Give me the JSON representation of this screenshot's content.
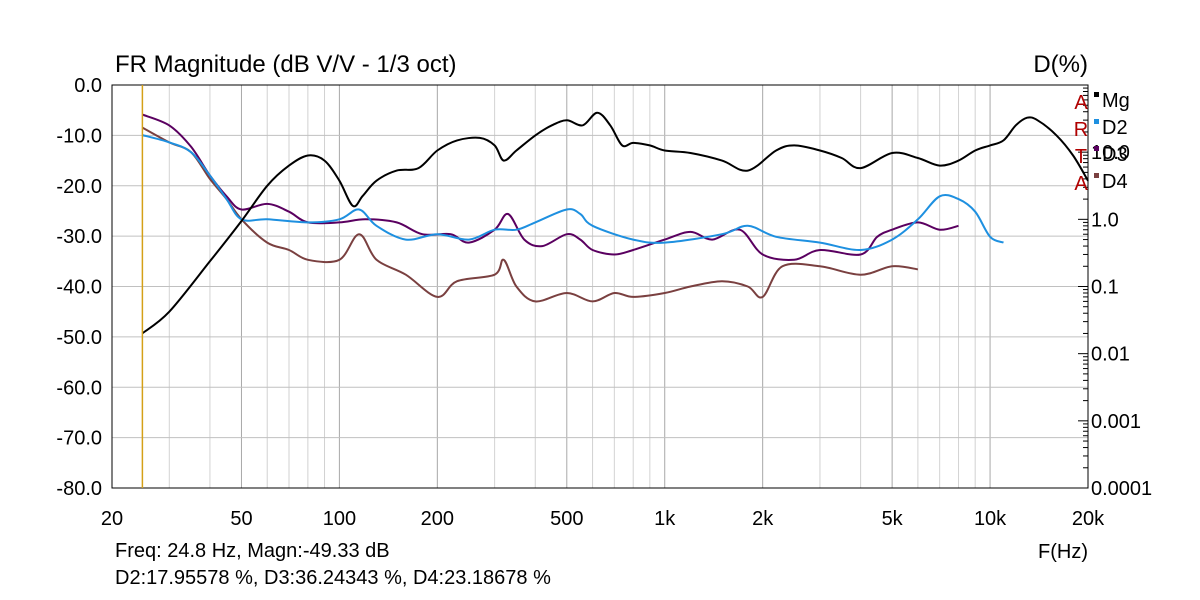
{
  "chart_data": {
    "type": "line",
    "title": "FR Magnitude (dB V/V - 1/3 oct)",
    "right_axis_title": "D(%)",
    "xlabel": "F(Hz)",
    "x_scale": "log",
    "xlim": [
      20,
      20000
    ],
    "ylim": [
      -80,
      0
    ],
    "y2_scale": "log",
    "y2lim": [
      0.0001,
      100
    ],
    "grid": true,
    "x_ticks": [
      20,
      50,
      100,
      200,
      500,
      1000,
      2000,
      5000,
      10000,
      20000
    ],
    "x_tick_labels": [
      "20",
      "50",
      "100",
      "200",
      "500",
      "1k",
      "2k",
      "5k",
      "10k",
      "20k"
    ],
    "y_ticks": [
      0,
      -10,
      -20,
      -30,
      -40,
      -50,
      -60,
      -70,
      -80
    ],
    "y_tick_labels": [
      "0.0",
      "-10.0",
      "-20.0",
      "-30.0",
      "-40.0",
      "-50.0",
      "-60.0",
      "-70.0",
      "-80.0"
    ],
    "y2_ticks": [
      10,
      1,
      0.1,
      0.01,
      0.001,
      0.0001
    ],
    "y2_tick_labels": [
      "10.0",
      "1.0",
      "0.1",
      "0.01",
      "0.001",
      "0.0001"
    ],
    "cursor_x": 24.8,
    "legend_placement": "top-right",
    "series": [
      {
        "name": "Mg",
        "tag": "A",
        "color": "#000000",
        "axis": "left",
        "points": [
          [
            24.8,
            -49.3
          ],
          [
            30,
            -45
          ],
          [
            40,
            -35
          ],
          [
            50,
            -27
          ],
          [
            60,
            -20
          ],
          [
            70,
            -16
          ],
          [
            80,
            -14
          ],
          [
            90,
            -15
          ],
          [
            100,
            -19
          ],
          [
            110,
            -24
          ],
          [
            118,
            -22
          ],
          [
            130,
            -19
          ],
          [
            150,
            -17
          ],
          [
            175,
            -16.5
          ],
          [
            200,
            -13
          ],
          [
            230,
            -11
          ],
          [
            270,
            -10.5
          ],
          [
            300,
            -12
          ],
          [
            320,
            -15
          ],
          [
            350,
            -13
          ],
          [
            400,
            -10
          ],
          [
            450,
            -8
          ],
          [
            500,
            -7
          ],
          [
            560,
            -8
          ],
          [
            620,
            -5.5
          ],
          [
            680,
            -8
          ],
          [
            740,
            -12
          ],
          [
            800,
            -11.5
          ],
          [
            900,
            -12
          ],
          [
            1000,
            -13
          ],
          [
            1200,
            -13.5
          ],
          [
            1500,
            -15
          ],
          [
            1800,
            -17
          ],
          [
            2200,
            -13
          ],
          [
            2500,
            -12
          ],
          [
            3000,
            -13
          ],
          [
            3500,
            -14.5
          ],
          [
            4000,
            -16.5
          ],
          [
            5000,
            -13.5
          ],
          [
            6000,
            -14.5
          ],
          [
            7000,
            -16
          ],
          [
            8000,
            -15
          ],
          [
            9000,
            -13
          ],
          [
            10000,
            -12
          ],
          [
            11000,
            -11
          ],
          [
            12000,
            -8
          ],
          [
            13000,
            -6.5
          ],
          [
            14000,
            -7
          ],
          [
            16000,
            -10
          ],
          [
            18000,
            -14
          ],
          [
            20000,
            -19
          ]
        ]
      },
      {
        "name": "D2",
        "tag": "R",
        "color": "#1e90e0",
        "axis": "right",
        "points": [
          [
            24.8,
            17.96
          ],
          [
            30,
            14
          ],
          [
            35,
            10
          ],
          [
            40,
            4.5
          ],
          [
            45,
            2
          ],
          [
            50,
            1.0
          ],
          [
            60,
            1.0
          ],
          [
            80,
            0.9
          ],
          [
            100,
            1.0
          ],
          [
            115,
            1.4
          ],
          [
            130,
            0.8
          ],
          [
            160,
            0.5
          ],
          [
            200,
            0.6
          ],
          [
            250,
            0.5
          ],
          [
            300,
            0.7
          ],
          [
            350,
            0.7
          ],
          [
            400,
            0.9
          ],
          [
            500,
            1.4
          ],
          [
            550,
            1.2
          ],
          [
            600,
            0.8
          ],
          [
            800,
            0.5
          ],
          [
            1000,
            0.45
          ],
          [
            1500,
            0.6
          ],
          [
            1800,
            0.8
          ],
          [
            2200,
            0.55
          ],
          [
            3000,
            0.45
          ],
          [
            4000,
            0.35
          ],
          [
            5000,
            0.5
          ],
          [
            6000,
            1.0
          ],
          [
            7000,
            2.2
          ],
          [
            8000,
            2.0
          ],
          [
            9000,
            1.3
          ],
          [
            10000,
            0.55
          ],
          [
            11000,
            0.45
          ]
        ]
      },
      {
        "name": "D3",
        "tag": "T",
        "color": "#5a0060",
        "axis": "right",
        "points": [
          [
            24.8,
            36.24
          ],
          [
            30,
            25
          ],
          [
            35,
            12
          ],
          [
            40,
            4.5
          ],
          [
            45,
            2.2
          ],
          [
            50,
            1.4
          ],
          [
            60,
            1.7
          ],
          [
            70,
            1.3
          ],
          [
            80,
            0.9
          ],
          [
            100,
            0.9
          ],
          [
            120,
            1.0
          ],
          [
            150,
            0.9
          ],
          [
            180,
            0.6
          ],
          [
            220,
            0.6
          ],
          [
            250,
            0.45
          ],
          [
            300,
            0.7
          ],
          [
            330,
            1.2
          ],
          [
            370,
            0.5
          ],
          [
            420,
            0.4
          ],
          [
            500,
            0.6
          ],
          [
            550,
            0.5
          ],
          [
            600,
            0.35
          ],
          [
            700,
            0.3
          ],
          [
            800,
            0.35
          ],
          [
            1000,
            0.5
          ],
          [
            1200,
            0.65
          ],
          [
            1400,
            0.5
          ],
          [
            1700,
            0.7
          ],
          [
            2000,
            0.3
          ],
          [
            2500,
            0.25
          ],
          [
            3000,
            0.35
          ],
          [
            4000,
            0.3
          ],
          [
            4500,
            0.55
          ],
          [
            5000,
            0.7
          ],
          [
            6000,
            0.9
          ],
          [
            7000,
            0.7
          ],
          [
            8000,
            0.8
          ]
        ]
      },
      {
        "name": "D4",
        "tag": "A",
        "color": "#7a4040",
        "axis": "right",
        "points": [
          [
            24.8,
            23.19
          ],
          [
            30,
            14
          ],
          [
            35,
            10
          ],
          [
            40,
            4
          ],
          [
            45,
            2
          ],
          [
            50,
            1.0
          ],
          [
            60,
            0.45
          ],
          [
            70,
            0.35
          ],
          [
            80,
            0.25
          ],
          [
            100,
            0.25
          ],
          [
            115,
            0.6
          ],
          [
            130,
            0.25
          ],
          [
            160,
            0.15
          ],
          [
            200,
            0.07
          ],
          [
            230,
            0.12
          ],
          [
            300,
            0.15
          ],
          [
            320,
            0.25
          ],
          [
            350,
            0.1
          ],
          [
            400,
            0.06
          ],
          [
            500,
            0.08
          ],
          [
            600,
            0.06
          ],
          [
            700,
            0.08
          ],
          [
            800,
            0.07
          ],
          [
            1000,
            0.08
          ],
          [
            1200,
            0.1
          ],
          [
            1500,
            0.12
          ],
          [
            1800,
            0.1
          ],
          [
            2000,
            0.07
          ],
          [
            2300,
            0.2
          ],
          [
            3000,
            0.2
          ],
          [
            4000,
            0.15
          ],
          [
            5000,
            0.2
          ],
          [
            6000,
            0.18
          ]
        ]
      }
    ]
  },
  "readout": {
    "line1": "Freq: 24.8 Hz, Magn:-49.33 dB",
    "line2": "D2:17.95578 %, D3:36.24343 %, D4:23.18678 %"
  }
}
